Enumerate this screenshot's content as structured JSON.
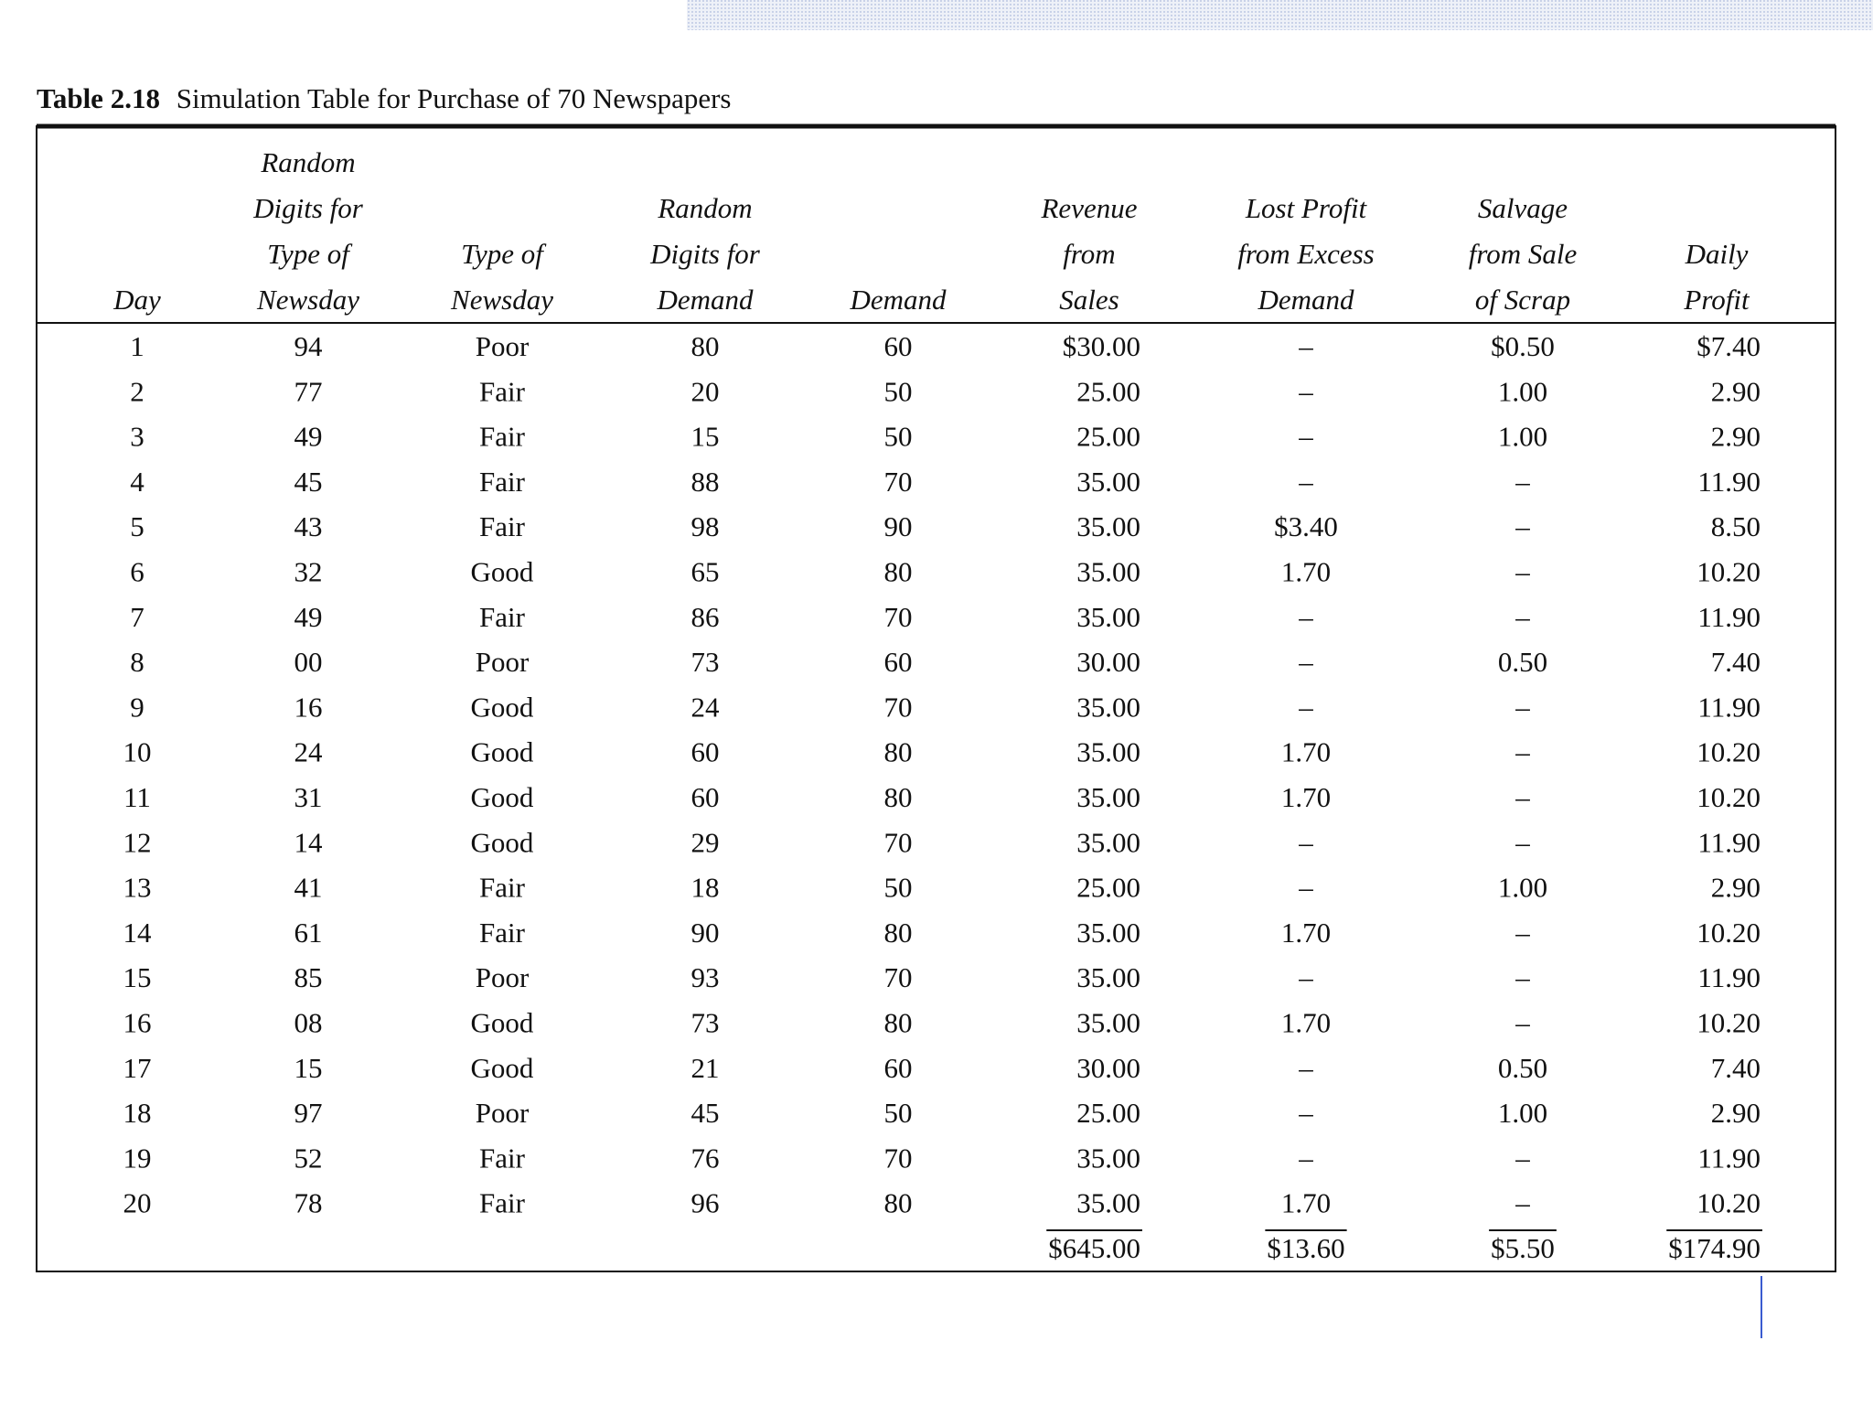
{
  "table": {
    "title_number": "Table 2.18",
    "title": "Simulation Table for Purchase of 70 Newspapers",
    "headers": [
      [
        "Day"
      ],
      [
        "Random",
        "Digits for",
        "Type of",
        "Newsday"
      ],
      [
        "Type of",
        "Newsday"
      ],
      [
        "Random",
        "Digits for",
        "Demand"
      ],
      [
        "Demand"
      ],
      [
        "Revenue",
        "from",
        "Sales"
      ],
      [
        "Lost Profit",
        "from Excess",
        "Demand"
      ],
      [
        "Salvage",
        "from Sale",
        "of Scrap"
      ],
      [
        "Daily",
        "Profit"
      ]
    ],
    "rows": [
      [
        "1",
        "94",
        "Poor",
        "80",
        "60",
        "$30.00",
        "–",
        "$0.50",
        "$7.40"
      ],
      [
        "2",
        "77",
        "Fair",
        "20",
        "50",
        "25.00",
        "–",
        "1.00",
        "2.90"
      ],
      [
        "3",
        "49",
        "Fair",
        "15",
        "50",
        "25.00",
        "–",
        "1.00",
        "2.90"
      ],
      [
        "4",
        "45",
        "Fair",
        "88",
        "70",
        "35.00",
        "–",
        "–",
        "11.90"
      ],
      [
        "5",
        "43",
        "Fair",
        "98",
        "90",
        "35.00",
        "$3.40",
        "–",
        "8.50"
      ],
      [
        "6",
        "32",
        "Good",
        "65",
        "80",
        "35.00",
        "1.70",
        "–",
        "10.20"
      ],
      [
        "7",
        "49",
        "Fair",
        "86",
        "70",
        "35.00",
        "–",
        "–",
        "11.90"
      ],
      [
        "8",
        "00",
        "Poor",
        "73",
        "60",
        "30.00",
        "–",
        "0.50",
        "7.40"
      ],
      [
        "9",
        "16",
        "Good",
        "24",
        "70",
        "35.00",
        "–",
        "–",
        "11.90"
      ],
      [
        "10",
        "24",
        "Good",
        "60",
        "80",
        "35.00",
        "1.70",
        "–",
        "10.20"
      ],
      [
        "11",
        "31",
        "Good",
        "60",
        "80",
        "35.00",
        "1.70",
        "–",
        "10.20"
      ],
      [
        "12",
        "14",
        "Good",
        "29",
        "70",
        "35.00",
        "–",
        "–",
        "11.90"
      ],
      [
        "13",
        "41",
        "Fair",
        "18",
        "50",
        "25.00",
        "–",
        "1.00",
        "2.90"
      ],
      [
        "14",
        "61",
        "Fair",
        "90",
        "80",
        "35.00",
        "1.70",
        "–",
        "10.20"
      ],
      [
        "15",
        "85",
        "Poor",
        "93",
        "70",
        "35.00",
        "–",
        "–",
        "11.90"
      ],
      [
        "16",
        "08",
        "Good",
        "73",
        "80",
        "35.00",
        "1.70",
        "–",
        "10.20"
      ],
      [
        "17",
        "15",
        "Good",
        "21",
        "60",
        "30.00",
        "–",
        "0.50",
        "7.40"
      ],
      [
        "18",
        "97",
        "Poor",
        "45",
        "50",
        "25.00",
        "–",
        "1.00",
        "2.90"
      ],
      [
        "19",
        "52",
        "Fair",
        "76",
        "70",
        "35.00",
        "–",
        "–",
        "11.90"
      ],
      [
        "20",
        "78",
        "Fair",
        "96",
        "80",
        "35.00",
        "1.70",
        "–",
        "10.20"
      ]
    ],
    "totals": [
      "$645.00",
      "$13.60",
      "$5.50",
      "$174.90"
    ]
  }
}
